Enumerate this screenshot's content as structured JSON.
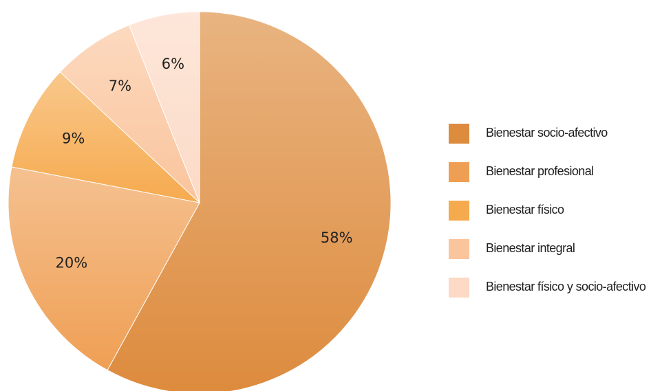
{
  "chart_data": {
    "type": "pie",
    "title": "",
    "slices": [
      {
        "label": "Bienestar socio-afectivo",
        "value": 58,
        "display": "58%",
        "color": "#dd8b3d"
      },
      {
        "label": "Bienestar profesional",
        "value": 20,
        "display": "20%",
        "color": "#ef9f54"
      },
      {
        "label": "Bienestar físico",
        "value": 9,
        "display": "9%",
        "color": "#f6aa4e"
      },
      {
        "label": "Bienestar integral",
        "value": 7,
        "display": "7%",
        "color": "#fac49c"
      },
      {
        "label": "Bienestar físico y socio-afectivo",
        "value": 6,
        "display": "6%",
        "color": "#fcdac6"
      }
    ],
    "legend_position": "right"
  }
}
